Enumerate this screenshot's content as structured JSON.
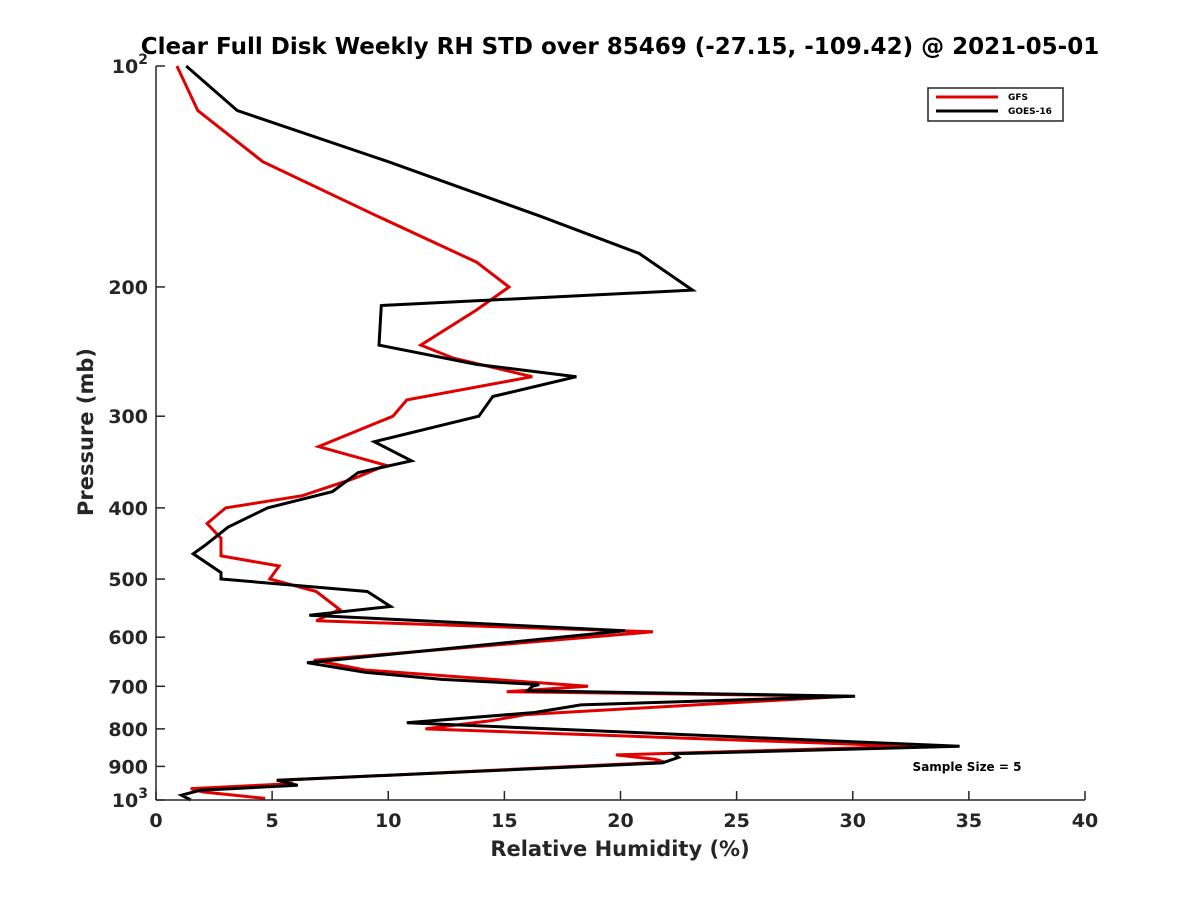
{
  "chart_data": {
    "type": "line",
    "title": "Clear Full Disk Weekly RH STD over 85469 (-27.15, -109.42) @ 2021-05-01",
    "xlabel": "Relative Humidity (%)",
    "ylabel": "Pressure (mb)",
    "xlim": [
      0,
      40
    ],
    "ylim": [
      100,
      1000
    ],
    "y_scale": "log",
    "y_reversed": true,
    "x_ticks": [
      "0",
      "5",
      "10",
      "15",
      "20",
      "25",
      "30",
      "35",
      "40"
    ],
    "y_ticks": [
      {
        "value": 100,
        "base": "10",
        "exp": "2"
      },
      {
        "value": 200,
        "label": "200"
      },
      {
        "value": 300,
        "label": "300"
      },
      {
        "value": 400,
        "label": "400"
      },
      {
        "value": 500,
        "label": "500"
      },
      {
        "value": 600,
        "label": "600"
      },
      {
        "value": 700,
        "label": "700"
      },
      {
        "value": 800,
        "label": "800"
      },
      {
        "value": 900,
        "label": "900"
      },
      {
        "value": 1000,
        "base": "10",
        "exp": "3"
      }
    ],
    "grid": false,
    "legend_position": "top-right",
    "annotation": "Sample Size = 5",
    "series": [
      {
        "name": "GFS",
        "color": "#e00000",
        "points": [
          [
            0.9,
            100
          ],
          [
            1.8,
            115
          ],
          [
            4.6,
            135
          ],
          [
            9.5,
            160
          ],
          [
            13.8,
            185
          ],
          [
            15.2,
            200
          ],
          [
            13.8,
            215
          ],
          [
            11.4,
            240
          ],
          [
            12.8,
            250
          ],
          [
            16.2,
            265
          ],
          [
            10.8,
            285
          ],
          [
            10.2,
            300
          ],
          [
            7.0,
            330
          ],
          [
            9.9,
            350
          ],
          [
            8.5,
            365
          ],
          [
            6.3,
            385
          ],
          [
            3.0,
            400
          ],
          [
            2.2,
            420
          ],
          [
            2.8,
            440
          ],
          [
            2.8,
            465
          ],
          [
            5.3,
            480
          ],
          [
            4.9,
            500
          ],
          [
            6.9,
            520
          ],
          [
            7.9,
            550
          ],
          [
            6.9,
            570
          ],
          [
            21.4,
            590
          ],
          [
            6.8,
            645
          ],
          [
            9.0,
            665
          ],
          [
            18.6,
            700
          ],
          [
            15.1,
            712
          ],
          [
            29.8,
            722
          ],
          [
            15.9,
            765
          ],
          [
            14.4,
            780
          ],
          [
            11.6,
            800
          ],
          [
            32.6,
            845
          ],
          [
            19.8,
            868
          ],
          [
            21.5,
            880
          ],
          [
            21.9,
            888
          ],
          [
            5.4,
            940
          ],
          [
            5.9,
            950
          ],
          [
            1.5,
            965
          ],
          [
            2.0,
            975
          ],
          [
            4.7,
            995
          ]
        ]
      },
      {
        "name": "GOES-16",
        "color": "#000000",
        "points": [
          [
            1.3,
            100
          ],
          [
            3.5,
            115
          ],
          [
            10.0,
            135
          ],
          [
            16.5,
            160
          ],
          [
            20.8,
            180
          ],
          [
            23.1,
            202
          ],
          [
            9.7,
            212
          ],
          [
            9.6,
            240
          ],
          [
            13.8,
            255
          ],
          [
            18.1,
            265
          ],
          [
            14.5,
            282
          ],
          [
            13.9,
            300
          ],
          [
            9.4,
            325
          ],
          [
            11.0,
            345
          ],
          [
            8.7,
            358
          ],
          [
            7.6,
            380
          ],
          [
            4.8,
            400
          ],
          [
            3.1,
            425
          ],
          [
            2.1,
            450
          ],
          [
            1.6,
            462
          ],
          [
            2.8,
            490
          ],
          [
            2.8,
            500
          ],
          [
            9.1,
            520
          ],
          [
            10.1,
            545
          ],
          [
            6.6,
            560
          ],
          [
            20.2,
            588
          ],
          [
            6.5,
            650
          ],
          [
            9.0,
            670
          ],
          [
            12.3,
            685
          ],
          [
            16.5,
            696
          ],
          [
            16.2,
            700
          ],
          [
            16.0,
            710
          ],
          [
            30.1,
            722
          ],
          [
            18.3,
            742
          ],
          [
            16.3,
            760
          ],
          [
            10.8,
            785
          ],
          [
            34.6,
            845
          ],
          [
            22.3,
            865
          ],
          [
            22.5,
            875
          ],
          [
            21.8,
            890
          ],
          [
            5.2,
            940
          ],
          [
            6.1,
            955
          ],
          [
            1.9,
            970
          ],
          [
            1.1,
            985
          ],
          [
            1.5,
            1000
          ]
        ]
      }
    ]
  }
}
